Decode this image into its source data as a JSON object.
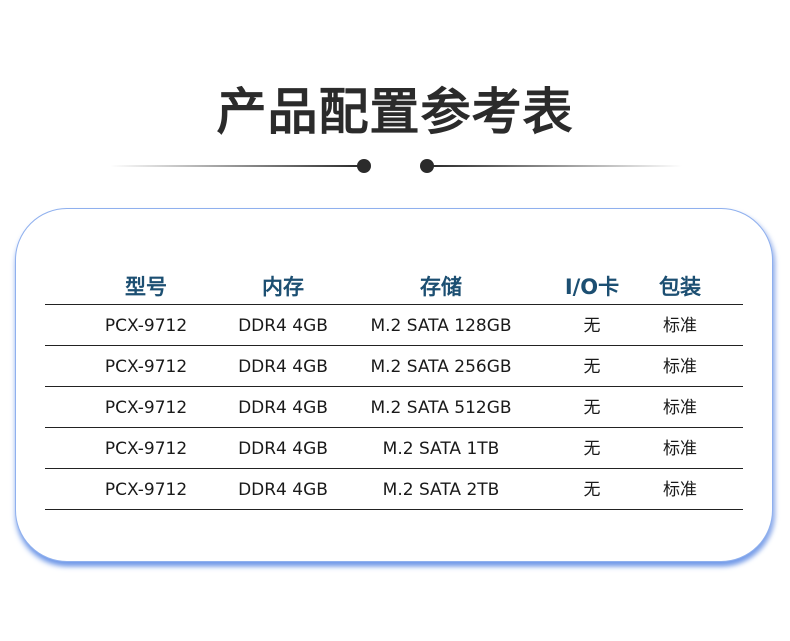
{
  "title": "产品配置参考表",
  "table": {
    "headers": [
      "型号",
      "内存",
      "存储",
      "I/O卡",
      "包装"
    ],
    "rows": [
      [
        "PCX-9712",
        "DDR4 4GB",
        "M.2 SATA 128GB",
        "无",
        "标准"
      ],
      [
        "PCX-9712",
        "DDR4 4GB",
        "M.2 SATA 256GB",
        "无",
        "标准"
      ],
      [
        "PCX-9712",
        "DDR4 4GB",
        "M.2 SATA 512GB",
        "无",
        "标准"
      ],
      [
        "PCX-9712",
        "DDR4 4GB",
        "M.2 SATA 1TB",
        "无",
        "标准"
      ],
      [
        "PCX-9712",
        "DDR4 4GB",
        "M.2 SATA 2TB",
        "无",
        "标准"
      ]
    ]
  },
  "colors": {
    "header_text": "#1c4f72",
    "card_border": "#8fb0ee",
    "shadow": "#6f98e8"
  }
}
